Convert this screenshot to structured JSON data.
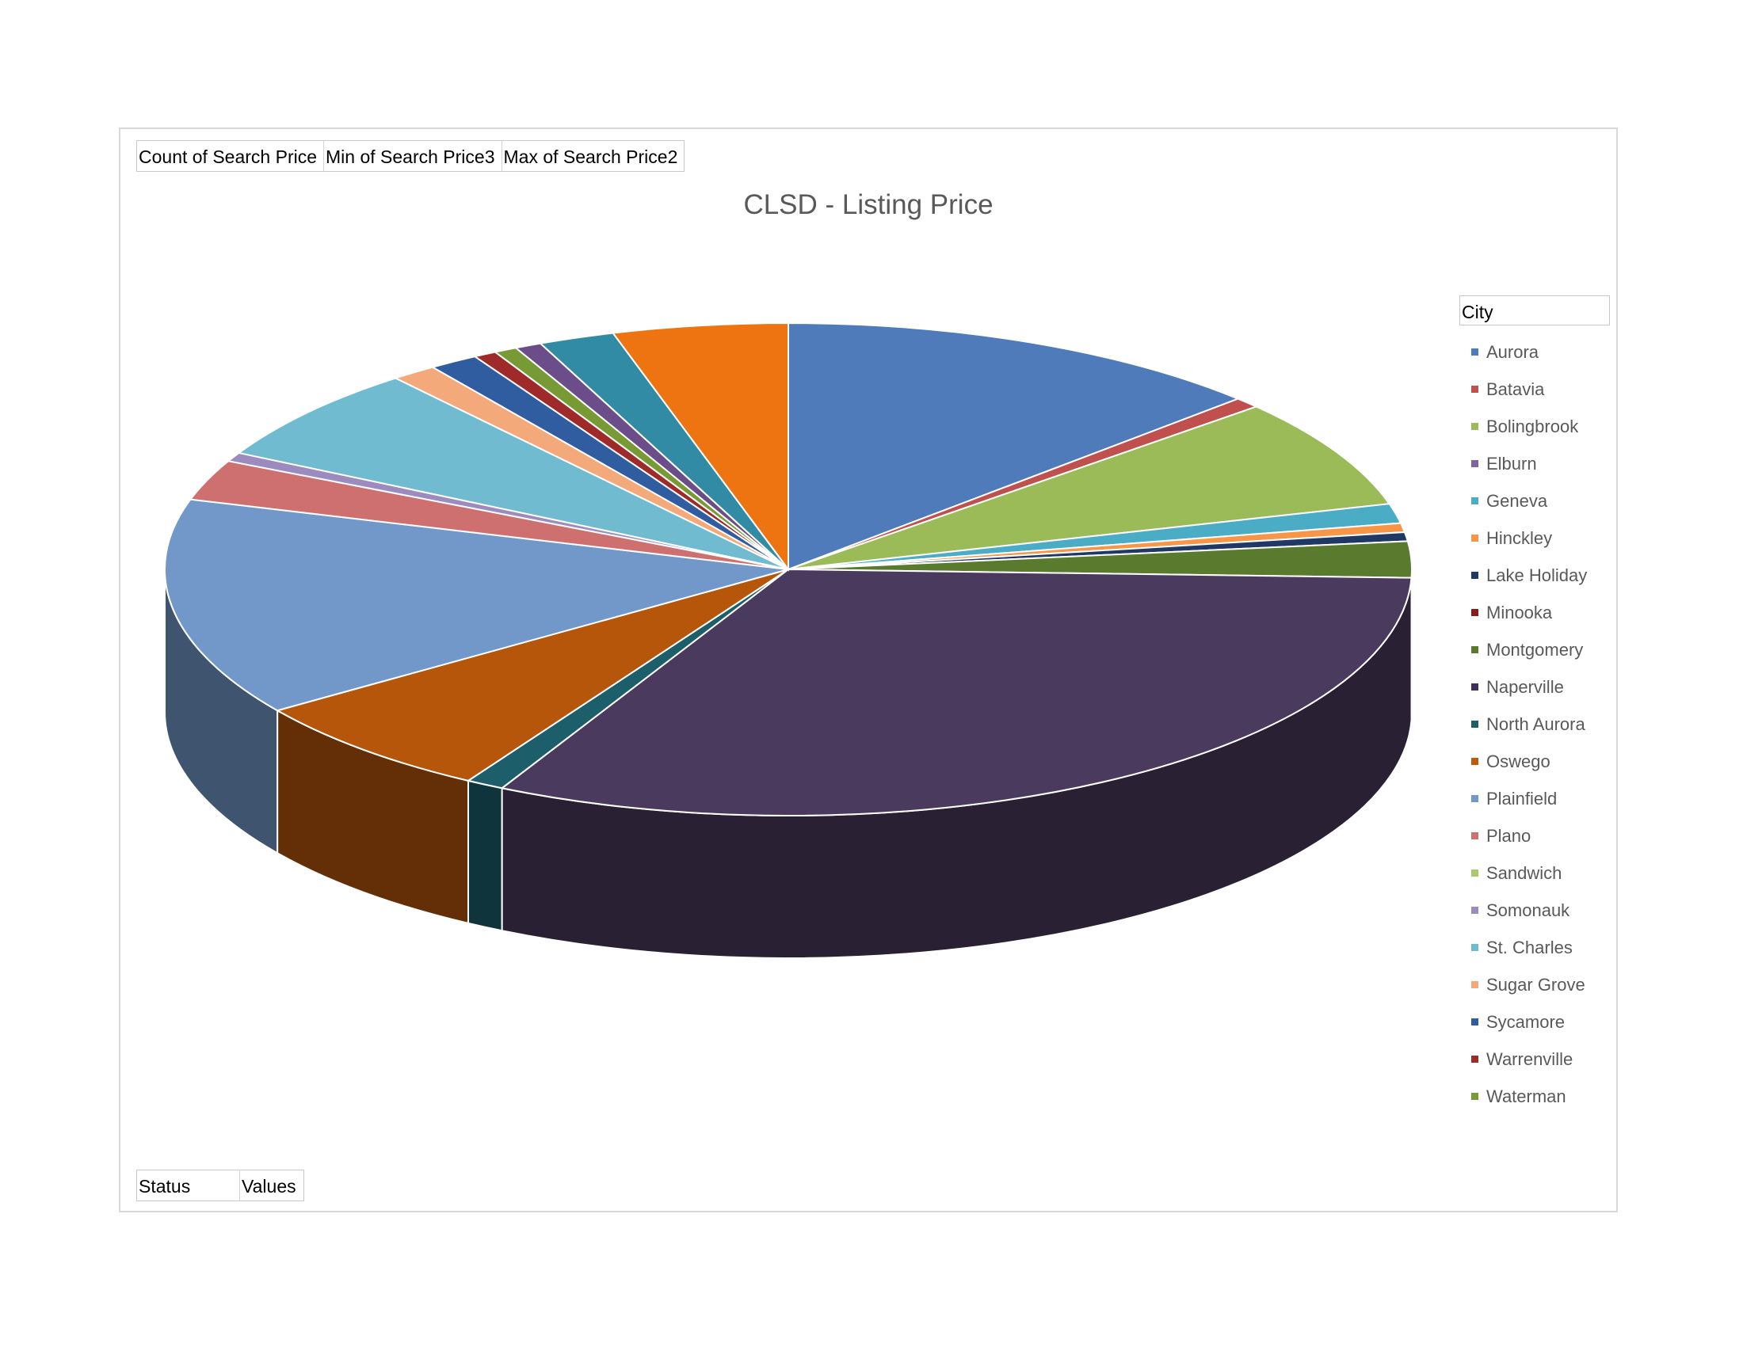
{
  "chart_data": {
    "type": "pie",
    "title": "CLSD - Listing Price",
    "legend_title": "City",
    "legend_position": "right",
    "categories": [
      "Aurora",
      "Batavia",
      "Bolingbrook",
      "Elburn",
      "Geneva",
      "Hinckley",
      "Lake Holiday",
      "Minooka",
      "Montgomery",
      "Naperville",
      "North Aurora",
      "Oswego",
      "Plainfield",
      "Plano",
      "Sandwich",
      "Somonauk",
      "St. Charles",
      "Sugar Grove",
      "Sycamore",
      "Warrenville",
      "Waterman"
    ],
    "slices": [
      {
        "label": "Aurora",
        "value": 13.0,
        "color": "#4f7bbb"
      },
      {
        "label": "Batavia",
        "value": 0.7,
        "color": "#c0504d"
      },
      {
        "label": "Bolingbrook",
        "value": 7.3,
        "color": "#9bbb59"
      },
      {
        "label": "Geneva",
        "value": 1.3,
        "color": "#4bacc6"
      },
      {
        "label": "Hinckley",
        "value": 0.6,
        "color": "#f79646"
      },
      {
        "label": "Lake Holiday",
        "value": 0.6,
        "color": "#1f3864"
      },
      {
        "label": "Montgomery",
        "value": 2.4,
        "color": "#5a7a2e"
      },
      {
        "label": "Naperville",
        "value": 32.5,
        "color": "#4a3b5e"
      },
      {
        "label": "North Aurora",
        "value": 1.0,
        "color": "#1d5e6b"
      },
      {
        "label": "Oswego",
        "value": 6.8,
        "color": "#b5560a"
      },
      {
        "label": "Plainfield",
        "value": 14.5,
        "color": "#7298c9"
      },
      {
        "label": "Plano",
        "value": 2.7,
        "color": "#cf7070"
      },
      {
        "label": "Somonauk",
        "value": 0.6,
        "color": "#9b8bbf"
      },
      {
        "label": "St. Charles",
        "value": 6.4,
        "color": "#70bbd0"
      },
      {
        "label": "Sugar Grove",
        "value": 1.2,
        "color": "#f4a97a"
      },
      {
        "label": "Sycamore",
        "value": 1.3,
        "color": "#2f5d9f"
      },
      {
        "label": "Warrenville",
        "value": 0.6,
        "color": "#9e2a2a"
      },
      {
        "label": "Waterman",
        "value": 0.6,
        "color": "#779a34"
      },
      {
        "label": "",
        "value": 0.7,
        "color": "#6b4d8a"
      },
      {
        "label": "",
        "value": 2.0,
        "color": "#328ba4"
      },
      {
        "label": "",
        "value": 4.6,
        "color": "#ed7410"
      }
    ]
  },
  "legend_items": [
    {
      "label": "Aurora",
      "color": "#4f7bbb"
    },
    {
      "label": "Batavia",
      "color": "#c0504d"
    },
    {
      "label": "Bolingbrook",
      "color": "#9bbb59"
    },
    {
      "label": "Elburn",
      "color": "#8064a2"
    },
    {
      "label": "Geneva",
      "color": "#4bacc6"
    },
    {
      "label": "Hinckley",
      "color": "#f79646"
    },
    {
      "label": "Lake Holiday",
      "color": "#1f3864"
    },
    {
      "label": "Minooka",
      "color": "#8b1a1a"
    },
    {
      "label": "Montgomery",
      "color": "#5a7a2e"
    },
    {
      "label": "Naperville",
      "color": "#3d2f5a"
    },
    {
      "label": "North Aurora",
      "color": "#1d5e6b"
    },
    {
      "label": "Oswego",
      "color": "#c05a0a"
    },
    {
      "label": "Plainfield",
      "color": "#7298c9"
    },
    {
      "label": "Plano",
      "color": "#cf7070"
    },
    {
      "label": "Sandwich",
      "color": "#a9c96f"
    },
    {
      "label": "Somonauk",
      "color": "#9b8bbf"
    },
    {
      "label": "St. Charles",
      "color": "#70bbd0"
    },
    {
      "label": "Sugar Grove",
      "color": "#f4a97a"
    },
    {
      "label": "Sycamore",
      "color": "#2f5d9f"
    },
    {
      "label": "Warrenville",
      "color": "#9e2a2a"
    },
    {
      "label": "Waterman",
      "color": "#779a34"
    }
  ],
  "pivot_fields": {
    "top": [
      "Count of Search Price",
      "Min of Search Price3",
      "Max of Search Price2"
    ],
    "bottom": [
      "Status",
      "Values"
    ]
  }
}
